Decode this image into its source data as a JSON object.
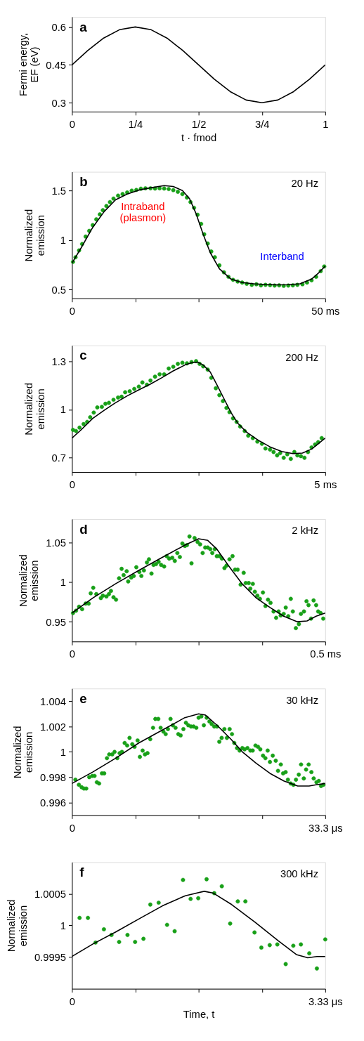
{
  "chart_data": [
    {
      "type": "line",
      "title": "a",
      "xlabel": "t · fmod",
      "ylabel": "Fermi energy, EF (eV)",
      "color": "#000000",
      "grid": false,
      "x": [
        0,
        0.0625,
        0.125,
        0.1875,
        0.25,
        0.3125,
        0.375,
        0.4375,
        0.5,
        0.5625,
        0.625,
        0.6875,
        0.75,
        0.8125,
        0.875,
        0.9375,
        1
      ],
      "values": [
        0.45,
        0.507,
        0.556,
        0.589,
        0.6,
        0.589,
        0.556,
        0.507,
        0.45,
        0.393,
        0.344,
        0.311,
        0.3,
        0.311,
        0.344,
        0.393,
        0.45
      ],
      "xlim": [
        0,
        1
      ],
      "xticks": [
        0,
        {
          "value": 0.25,
          "label": "1/4"
        },
        {
          "value": 0.5,
          "label": "1/2"
        },
        {
          "value": 0.75,
          "label": "3/4"
        },
        1
      ],
      "ylim": [
        0.265,
        0.64
      ],
      "yticks": [
        0.3,
        0.45,
        0.6
      ]
    },
    {
      "type": "scatter",
      "title": "b",
      "ylabel": "Normalized emission",
      "grid": false,
      "annotations": [
        "20 Hz",
        "Intraband\n(plasmon)",
        "Interband"
      ],
      "xlim": [
        0,
        50
      ],
      "xticks": [
        0,
        {
          "value": 12.5,
          "label": null
        },
        {
          "value": 25,
          "label": null
        },
        {
          "value": 37.5,
          "label": null
        },
        {
          "value": 50,
          "label": "50 ms"
        }
      ],
      "ylim": [
        0.41,
        1.69
      ],
      "yticks": [
        0.5,
        1,
        1.5
      ],
      "series": [
        {
          "type": "scatter",
          "marker": "circle",
          "color": "#18a018",
          "x": [
            0.2,
            0.7,
            1.4,
            2.0,
            2.7,
            3.4,
            4.1,
            4.8,
            5.5,
            6.1,
            6.8,
            7.5,
            8.2,
            9.1,
            10.0,
            10.9,
            11.8,
            12.7,
            13.6,
            14.5,
            15.5,
            16.4,
            17.3,
            18.2,
            19.1,
            20.0,
            20.9,
            21.8,
            22.7,
            23.4,
            24.1,
            24.8,
            25.5,
            26.1,
            26.8,
            27.5,
            28.2,
            29.1,
            30.0,
            30.9,
            31.8,
            32.7,
            33.6,
            34.5,
            35.5,
            36.4,
            37.3,
            38.2,
            39.1,
            40.0,
            40.9,
            41.8,
            42.7,
            43.6,
            44.5,
            45.5,
            46.4,
            47.3,
            48.2,
            49.1,
            49.8
          ],
          "values": [
            0.779,
            0.826,
            0.895,
            0.96,
            1.035,
            1.093,
            1.151,
            1.209,
            1.26,
            1.302,
            1.344,
            1.384,
            1.419,
            1.449,
            1.465,
            1.481,
            1.5,
            1.507,
            1.519,
            1.523,
            1.523,
            1.521,
            1.523,
            1.521,
            1.516,
            1.505,
            1.488,
            1.465,
            1.43,
            1.384,
            1.326,
            1.256,
            1.163,
            1.058,
            0.965,
            0.884,
            0.826,
            0.744,
            0.674,
            0.628,
            0.598,
            0.581,
            0.57,
            0.558,
            0.547,
            0.553,
            0.542,
            0.547,
            0.544,
            0.54,
            0.542,
            0.537,
            0.54,
            0.542,
            0.547,
            0.553,
            0.57,
            0.593,
            0.628,
            0.686,
            0.733
          ]
        },
        {
          "type": "line",
          "color": "#000000",
          "x": [
            0,
            1.8,
            4.1,
            6.4,
            8.6,
            10.9,
            13.2,
            15.5,
            18.2,
            20,
            21.8,
            23.2,
            24.5,
            25.9,
            27.3,
            29.1,
            31.4,
            33.6,
            35.9,
            38.2,
            40.5,
            42.7,
            45,
            47.3,
            48.6,
            50
          ],
          "values": [
            0.767,
            0.92,
            1.128,
            1.29,
            1.407,
            1.465,
            1.505,
            1.528,
            1.551,
            1.542,
            1.5,
            1.419,
            1.267,
            1.058,
            0.872,
            0.709,
            0.605,
            0.57,
            0.558,
            0.551,
            0.547,
            0.549,
            0.558,
            0.605,
            0.663,
            0.737
          ]
        }
      ]
    },
    {
      "type": "scatter",
      "title": "c",
      "ylabel": "Normalized emission",
      "grid": false,
      "annotations": [
        "200 Hz"
      ],
      "xlim": [
        0,
        5
      ],
      "xticks": [
        0,
        {
          "value": 1.25,
          "label": null
        },
        {
          "value": 2.5,
          "label": null
        },
        {
          "value": 3.75,
          "label": null
        },
        {
          "value": 5,
          "label": "5 ms"
        }
      ],
      "ylim": [
        0.61,
        1.4
      ],
      "yticks": [
        0.7,
        1,
        1.3
      ],
      "series": [
        {
          "type": "scatter",
          "marker": "circle",
          "color": "#18a018",
          "x": [
            0.02,
            0.08,
            0.15,
            0.23,
            0.3,
            0.36,
            0.43,
            0.5,
            0.59,
            0.66,
            0.73,
            0.82,
            0.91,
            0.98,
            1.05,
            1.14,
            1.23,
            1.32,
            1.39,
            1.48,
            1.55,
            1.64,
            1.73,
            1.82,
            1.91,
            2.0,
            2.09,
            2.18,
            2.27,
            2.36,
            2.45,
            2.52,
            2.59,
            2.68,
            2.75,
            2.84,
            2.91,
            2.98,
            3.05,
            3.11,
            3.18,
            3.25,
            3.32,
            3.41,
            3.48,
            3.57,
            3.66,
            3.75,
            3.82,
            3.91,
            3.98,
            4.05,
            4.11,
            4.18,
            4.25,
            4.32,
            4.39,
            4.45,
            4.52,
            4.59,
            4.66,
            4.73,
            4.8,
            4.86,
            4.93
          ],
          "values": [
            0.873,
            0.866,
            0.887,
            0.909,
            0.923,
            0.952,
            0.981,
            1.013,
            1.017,
            1.036,
            1.042,
            1.061,
            1.075,
            1.08,
            1.108,
            1.114,
            1.129,
            1.143,
            1.169,
            1.155,
            1.181,
            1.205,
            1.22,
            1.22,
            1.256,
            1.267,
            1.285,
            1.292,
            1.288,
            1.296,
            1.302,
            1.285,
            1.27,
            1.249,
            1.198,
            1.133,
            1.09,
            1.053,
            1.01,
            0.984,
            0.945,
            0.923,
            0.894,
            0.866,
            0.837,
            0.822,
            0.8,
            0.786,
            0.757,
            0.75,
            0.735,
            0.714,
            0.728,
            0.699,
            0.721,
            0.692,
            0.735,
            0.714,
            0.709,
            0.699,
            0.735,
            0.764,
            0.782,
            0.796,
            0.822
          ]
        },
        {
          "type": "line",
          "color": "#000000",
          "x": [
            0,
            0.18,
            0.41,
            0.64,
            0.86,
            1.09,
            1.32,
            1.55,
            1.77,
            2.0,
            2.23,
            2.36,
            2.48,
            2.59,
            2.73,
            2.86,
            3.0,
            3.14,
            3.27,
            3.45,
            3.68,
            3.91,
            4.14,
            4.36,
            4.55,
            4.73,
            4.86,
            5.0
          ],
          "values": [
            0.822,
            0.873,
            0.945,
            0.996,
            1.042,
            1.085,
            1.123,
            1.159,
            1.198,
            1.241,
            1.278,
            1.292,
            1.296,
            1.278,
            1.234,
            1.155,
            1.068,
            0.981,
            0.916,
            0.858,
            0.808,
            0.767,
            0.738,
            0.725,
            0.728,
            0.753,
            0.786,
            0.822
          ]
        }
      ]
    },
    {
      "type": "scatter",
      "title": "d",
      "ylabel": "Normalized emission",
      "grid": false,
      "annotations": [
        "2 kHz"
      ],
      "xlim": [
        0,
        0.5
      ],
      "xticks": [
        0,
        {
          "value": 0.125,
          "label": null
        },
        {
          "value": 0.25,
          "label": null
        },
        {
          "value": 0.375,
          "label": null
        },
        {
          "value": 0.5,
          "label": "0.5 ms"
        }
      ],
      "ylim": [
        0.925,
        1.08
      ],
      "yticks": [
        0.95,
        1,
        1.05
      ],
      "series": [
        {
          "type": "scatter",
          "marker": "circle",
          "color": "#18a018",
          "x": [
            0.002,
            0.008,
            0.014,
            0.02,
            0.027,
            0.033,
            0.037,
            0.042,
            0.048,
            0.057,
            0.061,
            0.068,
            0.073,
            0.077,
            0.082,
            0.087,
            0.093,
            0.098,
            0.102,
            0.108,
            0.111,
            0.117,
            0.122,
            0.127,
            0.133,
            0.137,
            0.142,
            0.148,
            0.152,
            0.157,
            0.161,
            0.166,
            0.171,
            0.176,
            0.182,
            0.187,
            0.192,
            0.198,
            0.203,
            0.208,
            0.213,
            0.218,
            0.223,
            0.227,
            0.232,
            0.236,
            0.242,
            0.248,
            0.253,
            0.258,
            0.263,
            0.268,
            0.273,
            0.277,
            0.282,
            0.286,
            0.291,
            0.296,
            0.301,
            0.305,
            0.311,
            0.317,
            0.322,
            0.327,
            0.333,
            0.339,
            0.343,
            0.349,
            0.352,
            0.357,
            0.361,
            0.366,
            0.371,
            0.377,
            0.382,
            0.387,
            0.392,
            0.398,
            0.403,
            0.408,
            0.412,
            0.418,
            0.422,
            0.427,
            0.432,
            0.436,
            0.442,
            0.448,
            0.452,
            0.458,
            0.463,
            0.467,
            0.472,
            0.477,
            0.482,
            0.486,
            0.491,
            0.496
          ],
          "values": [
            0.961,
            0.964,
            0.969,
            0.966,
            0.973,
            0.973,
            0.986,
            0.993,
            0.985,
            0.98,
            0.983,
            0.982,
            0.985,
            0.989,
            0.981,
            0.978,
            1.005,
            1.017,
            1.009,
            1.014,
            1.001,
            1.006,
            1.008,
            1.019,
            1.013,
            1.008,
            1.015,
            1.025,
            1.029,
            1.011,
            1.022,
            1.023,
            1.026,
            1.022,
            1.02,
            1.033,
            1.03,
            1.031,
            1.027,
            1.037,
            1.032,
            1.049,
            1.046,
            1.047,
            1.058,
            1.024,
            1.056,
            1.051,
            1.048,
            1.037,
            1.044,
            1.044,
            1.042,
            1.037,
            1.042,
            1.033,
            1.033,
            1.03,
            1.018,
            1.021,
            1.029,
            1.033,
            1.016,
            1.016,
            0.997,
            1.012,
            0.999,
            0.999,
            0.992,
            0.998,
            0.988,
            0.983,
            0.979,
            0.987,
            0.97,
            0.978,
            0.974,
            0.963,
            0.955,
            0.963,
            0.958,
            0.96,
            0.968,
            0.957,
            0.979,
            0.963,
            0.942,
            0.947,
            0.96,
            0.963,
            0.976,
            0.971,
            0.954,
            0.977,
            0.971,
            0.963,
            0.961,
            0.954
          ]
        },
        {
          "type": "line",
          "color": "#000000",
          "x": [
            0,
            0.041,
            0.086,
            0.132,
            0.177,
            0.223,
            0.25,
            0.268,
            0.286,
            0.309,
            0.336,
            0.364,
            0.391,
            0.418,
            0.445,
            0.464,
            0.482,
            0.5
          ],
          "values": [
            0.961,
            0.98,
            0.998,
            1.015,
            1.031,
            1.047,
            1.055,
            1.053,
            1.042,
            1.021,
            0.998,
            0.98,
            0.968,
            0.957,
            0.95,
            0.951,
            0.957,
            0.961
          ]
        }
      ]
    },
    {
      "type": "scatter",
      "title": "e",
      "ylabel": "Normalized emission",
      "grid": false,
      "annotations": [
        "30 kHz"
      ],
      "xlim": [
        0,
        33.3
      ],
      "xticks": [
        0,
        {
          "value": 8.325,
          "label": null
        },
        {
          "value": 16.65,
          "label": null
        },
        {
          "value": 24.975,
          "label": null
        },
        {
          "value": 33.3,
          "label": "33.3 μs"
        }
      ],
      "ylim": [
        0.995,
        1.005
      ],
      "yticks": [
        0.996,
        0.998,
        1,
        1.002,
        1.004
      ],
      "series": [
        {
          "type": "scatter",
          "marker": "circle",
          "color": "#18a018",
          "x": [
            0.45,
            0.91,
            1.27,
            1.57,
            1.88,
            2.27,
            2.66,
            2.97,
            3.27,
            3.57,
            3.94,
            4.24,
            4.6,
            4.9,
            5.3,
            5.6,
            5.96,
            6.27,
            6.57,
            6.93,
            7.26,
            7.57,
            7.93,
            8.23,
            8.63,
            8.93,
            9.29,
            9.6,
            9.93,
            10.29,
            10.66,
            10.96,
            11.35,
            11.66,
            12.02,
            12.32,
            12.62,
            12.96,
            13.26,
            13.62,
            13.98,
            14.29,
            14.65,
            14.98,
            15.29,
            15.65,
            15.98,
            16.35,
            16.65,
            17.01,
            17.34,
            17.71,
            18.07,
            18.37,
            18.71,
            19.07,
            19.37,
            19.68,
            20.04,
            20.37,
            20.73,
            21.04,
            21.34,
            21.7,
            22.04,
            22.4,
            22.7,
            23.07,
            23.46,
            23.76,
            24.13,
            24.46,
            24.76,
            25.12,
            25.43,
            25.73,
            26.03,
            26.4,
            26.79,
            27.09,
            27.46,
            27.76,
            28.09,
            28.39,
            28.76,
            29.12,
            29.45,
            29.82,
            30.12,
            30.48,
            30.78,
            31.12,
            31.48,
            31.78,
            32.15,
            32.45,
            32.75,
            33.06
          ],
          "values": [
            0.9978,
            0.9974,
            0.9972,
            0.9971,
            0.9971,
            0.998,
            0.9981,
            0.9981,
            0.9976,
            0.9975,
            0.9983,
            0.9983,
            0.9995,
            0.9998,
            0.9998,
            1.0,
            0.9995,
            0.9999,
            1.0,
            1.0007,
            1.0005,
            1.0011,
            1.0006,
            1.0004,
            1.0009,
            0.9996,
            1.0001,
            0.9998,
            0.9999,
            1.001,
            1.0019,
            1.0026,
            1.0026,
            1.0019,
            1.0016,
            1.0014,
            1.0018,
            1.0026,
            1.0021,
            1.0019,
            1.0014,
            1.0013,
            1.0018,
            1.0023,
            1.0021,
            1.002,
            1.002,
            1.0019,
            1.0027,
            1.0028,
            1.0021,
            1.0027,
            1.0024,
            1.0022,
            1.002,
            1.002,
            1.0008,
            1.0011,
            1.0018,
            1.0011,
            1.0018,
            1.0014,
            1.0007,
            1.0003,
            1.0001,
            1.0003,
            1.0002,
            1.0003,
            1.0001,
            1.0001,
            1.0005,
            1.0004,
            1.0002,
            0.9997,
            0.9995,
            1.0001,
            0.9992,
            0.9997,
            0.9993,
            0.9985,
            0.999,
            0.9983,
            0.9984,
            0.9978,
            0.9975,
            0.9974,
            0.9978,
            0.9982,
            0.999,
            0.9979,
            0.9986,
            0.999,
            0.9984,
            0.9979,
            0.9976,
            0.9977,
            0.9973,
            0.9974
          ]
        },
        {
          "type": "line",
          "color": "#000000",
          "x": [
            0,
            2.72,
            5.75,
            8.78,
            11.81,
            14.84,
            16.65,
            17.56,
            19.07,
            20.89,
            22.4,
            24.22,
            26.03,
            27.85,
            29.67,
            31.18,
            32.09,
            33.3
          ],
          "values": [
            0.9975,
            0.9984,
            0.9995,
            1.0007,
            1.0017,
            1.0027,
            1.003,
            1.0029,
            1.0021,
            1.001,
            1.0,
            0.9991,
            0.9983,
            0.9977,
            0.9973,
            0.9973,
            0.9974,
            0.9975
          ]
        }
      ]
    },
    {
      "type": "scatter",
      "title": "f",
      "xlabel": "Time, t",
      "ylabel": "Normalized emission",
      "grid": false,
      "annotations": [
        "300 kHz"
      ],
      "xlim": [
        0,
        3.33
      ],
      "xticks": [
        0,
        {
          "value": 0.8325,
          "label": null
        },
        {
          "value": 1.665,
          "label": null
        },
        {
          "value": 2.4975,
          "label": null
        },
        {
          "value": 3.33,
          "label": "3.33 μs"
        }
      ],
      "ylim": [
        0.999,
        1.001
      ],
      "yticks": [
        0.9995,
        1,
        1.0005
      ],
      "series": [
        {
          "type": "scatter",
          "marker": "circle",
          "color": "#18a018",
          "x": [
            0.1,
            0.21,
            0.31,
            0.42,
            0.52,
            0.62,
            0.73,
            0.83,
            0.94,
            1.03,
            1.14,
            1.25,
            1.35,
            1.46,
            1.56,
            1.66,
            1.77,
            1.87,
            1.97,
            2.08,
            2.18,
            2.28,
            2.4,
            2.49,
            2.6,
            2.7,
            2.81,
            2.91,
            3.01,
            3.12,
            3.22,
            3.33
          ],
          "values": [
            1.00012,
            1.00012,
            0.99973,
            0.99994,
            0.99985,
            0.99974,
            0.99985,
            0.99974,
            0.99979,
            1.00033,
            1.00036,
            1.00001,
            0.99991,
            1.00072,
            1.00042,
            1.00043,
            1.00073,
            1.00051,
            1.00062,
            1.00003,
            1.00038,
            1.00038,
            0.99989,
            0.99965,
            0.99969,
            0.9997,
            0.99939,
            0.99968,
            0.9997,
            0.99956,
            0.99932,
            0.99978
          ]
        },
        {
          "type": "line",
          "color": "#000000",
          "x": [
            0,
            0.28,
            0.58,
            0.89,
            1.19,
            1.49,
            1.74,
            1.86,
            2.1,
            2.41,
            2.71,
            2.95,
            3.1,
            3.22,
            3.33
          ],
          "values": [
            0.99951,
            0.99971,
            0.9999,
            1.00011,
            1.00031,
            1.00047,
            1.00054,
            1.00051,
            1.00033,
            1.00005,
            0.99976,
            0.99954,
            0.99949,
            0.99951,
            0.99951
          ]
        }
      ]
    }
  ]
}
